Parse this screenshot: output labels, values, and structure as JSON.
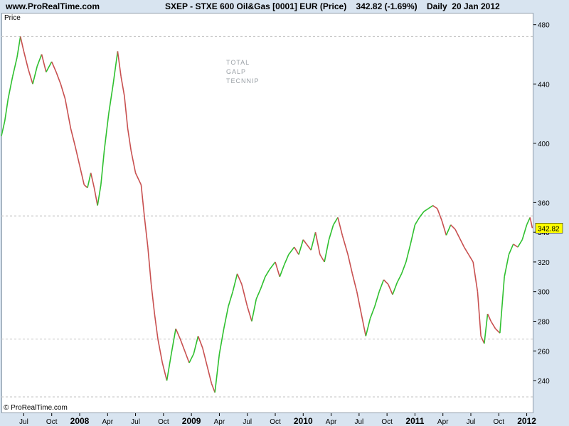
{
  "header": {
    "site": "www.ProRealTime.com",
    "title": "SXEP - STXE 600 Oil&Gas [0001] EUR (Price)    342.82 (-1.69%)    Daily  20 Jan 2012"
  },
  "footer": {
    "copyright": "© ProRealTime.com"
  },
  "chart_data": {
    "type": "line",
    "title": "SXEP - STXE 600 Oil&Gas [0001] EUR (Price)",
    "ylabel": "Price",
    "last_value_label": "342.82",
    "change_label": "(-1.69%)",
    "period": "Daily",
    "date": "20 Jan 2012",
    "ylim": [
      218,
      488
    ],
    "y_ticks": [
      480,
      440,
      400,
      360,
      340,
      320,
      300,
      280,
      260,
      240
    ],
    "y_tick_labels": [
      "480",
      "440",
      "400",
      "360",
      "340",
      "320",
      "300",
      "280",
      "260",
      "240"
    ],
    "x_ticks": [
      {
        "label": "Jul",
        "t": 2007.5,
        "year": false
      },
      {
        "label": "Oct",
        "t": 2007.75,
        "year": false
      },
      {
        "label": "2008",
        "t": 2008.0,
        "year": true
      },
      {
        "label": "Apr",
        "t": 2008.25,
        "year": false
      },
      {
        "label": "Jul",
        "t": 2008.5,
        "year": false
      },
      {
        "label": "Oct",
        "t": 2008.75,
        "year": false
      },
      {
        "label": "2009",
        "t": 2009.0,
        "year": true
      },
      {
        "label": "Apr",
        "t": 2009.25,
        "year": false
      },
      {
        "label": "Jul",
        "t": 2009.5,
        "year": false
      },
      {
        "label": "Oct",
        "t": 2009.75,
        "year": false
      },
      {
        "label": "2010",
        "t": 2010.0,
        "year": true
      },
      {
        "label": "Apr",
        "t": 2010.25,
        "year": false
      },
      {
        "label": "Jul",
        "t": 2010.5,
        "year": false
      },
      {
        "label": "Oct",
        "t": 2010.75,
        "year": false
      },
      {
        "label": "2011",
        "t": 2011.0,
        "year": true
      },
      {
        "label": "Apr",
        "t": 2011.25,
        "year": false
      },
      {
        "label": "Jul",
        "t": 2011.5,
        "year": false
      },
      {
        "label": "Oct",
        "t": 2011.75,
        "year": false
      },
      {
        "label": "2012",
        "t": 2012.0,
        "year": true
      }
    ],
    "xlim": [
      2007.3,
      2012.06
    ],
    "x": [
      2007.3,
      2007.33,
      2007.36,
      2007.4,
      2007.44,
      2007.47,
      2007.5,
      2007.54,
      2007.58,
      2007.62,
      2007.66,
      2007.7,
      2007.75,
      2007.79,
      2007.83,
      2007.87,
      2007.92,
      2007.96,
      2008.0,
      2008.04,
      2008.07,
      2008.1,
      2008.13,
      2008.16,
      2008.19,
      2008.22,
      2008.26,
      2008.3,
      2008.34,
      2008.37,
      2008.4,
      2008.43,
      2008.46,
      2008.5,
      2008.55,
      2008.58,
      2008.61,
      2008.64,
      2008.67,
      2008.7,
      2008.74,
      2008.78,
      2008.82,
      2008.86,
      2008.9,
      2008.94,
      2008.98,
      2009.02,
      2009.06,
      2009.1,
      2009.14,
      2009.18,
      2009.21,
      2009.25,
      2009.29,
      2009.33,
      2009.37,
      2009.41,
      2009.45,
      2009.5,
      2009.54,
      2009.58,
      2009.62,
      2009.66,
      2009.7,
      2009.75,
      2009.79,
      2009.83,
      2009.87,
      2009.92,
      2009.96,
      2010.0,
      2010.03,
      2010.07,
      2010.11,
      2010.15,
      2010.19,
      2010.23,
      2010.27,
      2010.31,
      2010.35,
      2010.4,
      2010.44,
      2010.48,
      2010.52,
      2010.56,
      2010.6,
      2010.64,
      2010.68,
      2010.72,
      2010.76,
      2010.8,
      2010.84,
      2010.88,
      2010.92,
      2010.96,
      2011.0,
      2011.04,
      2011.08,
      2011.12,
      2011.16,
      2011.2,
      2011.24,
      2011.28,
      2011.32,
      2011.36,
      2011.4,
      2011.44,
      2011.48,
      2011.52,
      2011.56,
      2011.59,
      2011.62,
      2011.65,
      2011.68,
      2011.72,
      2011.76,
      2011.8,
      2011.84,
      2011.88,
      2011.92,
      2011.96,
      2012.0,
      2012.03,
      2012.05
    ],
    "values": [
      405,
      415,
      430,
      445,
      458,
      472,
      462,
      450,
      440,
      452,
      460,
      448,
      455,
      448,
      440,
      430,
      410,
      398,
      385,
      372,
      370,
      380,
      370,
      358,
      372,
      395,
      420,
      440,
      462,
      445,
      432,
      410,
      395,
      380,
      372,
      350,
      330,
      305,
      285,
      268,
      252,
      240,
      258,
      275,
      268,
      260,
      252,
      258,
      270,
      262,
      250,
      238,
      232,
      258,
      275,
      290,
      300,
      312,
      305,
      290,
      280,
      295,
      302,
      310,
      315,
      320,
      310,
      318,
      325,
      330,
      325,
      335,
      332,
      328,
      340,
      325,
      320,
      335,
      345,
      350,
      338,
      325,
      312,
      300,
      285,
      270,
      282,
      290,
      300,
      308,
      305,
      298,
      306,
      312,
      320,
      332,
      345,
      350,
      354,
      356,
      358,
      356,
      348,
      338,
      345,
      342,
      336,
      330,
      325,
      320,
      300,
      270,
      265,
      285,
      280,
      275,
      272,
      310,
      325,
      332,
      330,
      335,
      345,
      350,
      342.82
    ],
    "series": [
      {
        "name": "Price"
      }
    ],
    "reference_lines": [
      472,
      351,
      268,
      229
    ],
    "annotations": [
      "TOTAL",
      "GALP",
      "TECNNIP"
    ],
    "colors": {
      "up": "#2fc02f",
      "down": "#c85050",
      "grid": "#c0c0c0",
      "last_value_bg": "#ffff00"
    },
    "grid": false,
    "legend": "none"
  }
}
